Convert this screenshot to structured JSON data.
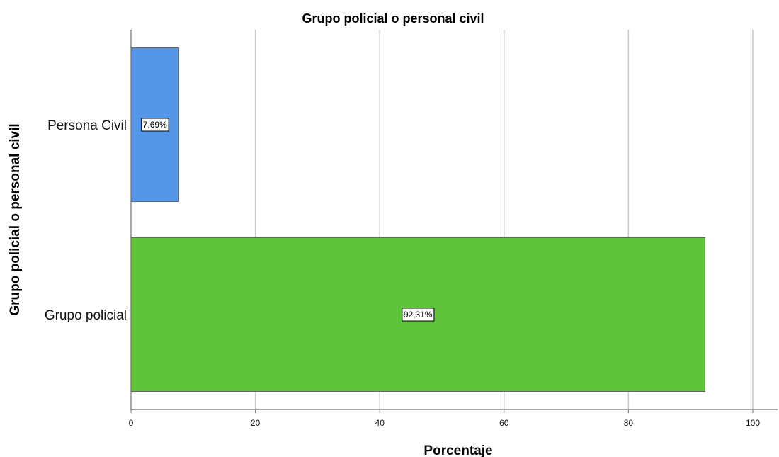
{
  "chart_data": {
    "type": "bar",
    "orientation": "horizontal",
    "title": "Grupo policial o personal civil",
    "xlabel": "Porcentaje",
    "ylabel": "Grupo policial o personal civil",
    "categories": [
      "Persona Civil",
      "Grupo policial"
    ],
    "values": [
      7.69,
      92.31
    ],
    "data_labels": [
      "7,69%",
      "92,31%"
    ],
    "colors": [
      "#5597e6",
      "#5ec33b"
    ],
    "xlim": [
      0,
      100
    ],
    "xticks": [
      0,
      20,
      40,
      60,
      80,
      100
    ],
    "xtick_labels": [
      "0",
      "20",
      "40",
      "60",
      "80",
      "100"
    ],
    "grid": true,
    "legend": "none"
  }
}
